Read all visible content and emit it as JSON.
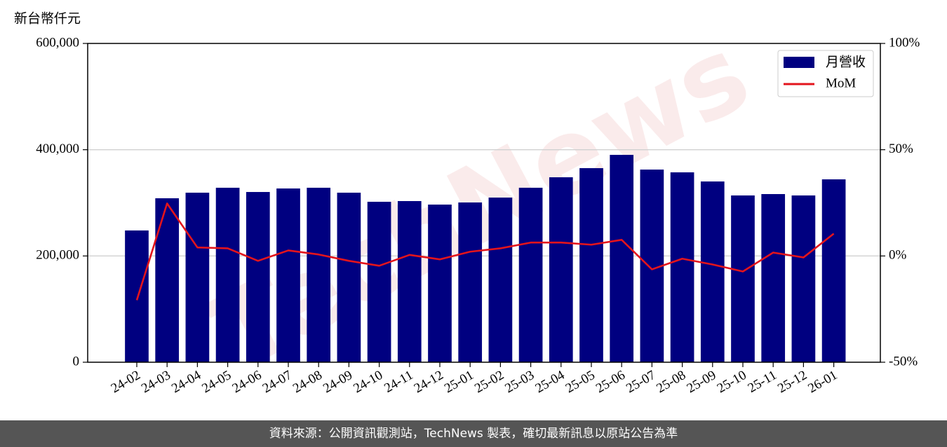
{
  "chart_data": {
    "type": "bar",
    "y_label": "新台幣仟元",
    "watermark": "TechNews",
    "source": "資料來源：公開資訊觀測站，TechNews 製表，確切最新訊息以原站公告為準",
    "categories": [
      "24-02",
      "24-03",
      "24-04",
      "24-05",
      "24-06",
      "24-07",
      "24-08",
      "24-09",
      "24-10",
      "24-11",
      "24-12",
      "25-01",
      "25-02",
      "25-03",
      "25-04",
      "25-05",
      "25-06",
      "25-07",
      "25-08",
      "25-09",
      "25-10",
      "25-11",
      "25-12",
      "26-01"
    ],
    "series": [
      {
        "name": "月營收",
        "type": "bar",
        "color": "#000080",
        "values": [
          248000,
          308600,
          319100,
          328400,
          320400,
          327000,
          328400,
          319100,
          302000,
          303300,
          296700,
          300700,
          309900,
          328400,
          348100,
          365300,
          390300,
          362600,
          357400,
          340200,
          313900,
          316500,
          313900,
          344200
        ]
      },
      {
        "name": "MoM",
        "type": "line",
        "axis": "y2",
        "color": "#e3141c",
        "values": [
          -20.8,
          24.7,
          4.0,
          3.6,
          -2.3,
          2.6,
          0.7,
          -2.3,
          -4.6,
          0.5,
          -1.6,
          2.0,
          3.6,
          6.3,
          6.3,
          5.3,
          7.6,
          -6.3,
          -1.3,
          -4.0,
          -7.3,
          1.6,
          -0.7,
          10.5
        ]
      }
    ],
    "ylim": [
      0,
      600000
    ],
    "yticks": [
      0,
      {
        "value": 200000,
        "label": "200,000"
      },
      {
        "value": 400000,
        "label": "400,000"
      },
      {
        "value": 600000,
        "label": "600,000"
      }
    ],
    "y2lim": [
      -50,
      100
    ],
    "y2ticks": [
      {
        "value": -50,
        "label": "-50%"
      },
      {
        "value": 0,
        "label": "0%"
      },
      {
        "value": 50,
        "label": "50%"
      },
      {
        "value": 100,
        "label": "100%"
      }
    ],
    "grid": true,
    "legend": "upper right"
  }
}
